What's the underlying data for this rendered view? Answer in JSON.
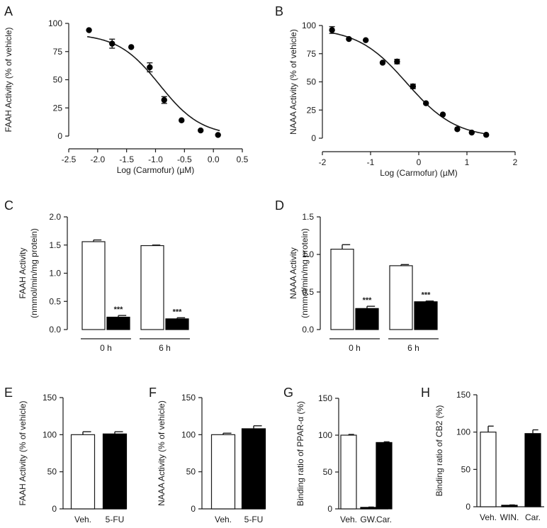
{
  "chart_data": [
    {
      "panel": "A",
      "type": "scatter",
      "xlabel": "Log (Carmofur) (µM)",
      "ylabel": "FAAH Activity (% of vehicle)",
      "xlim": [
        -2.5,
        0.5
      ],
      "ylim": [
        0,
        100
      ],
      "xticks": [
        "-2.5",
        "-2.0",
        "-1.5",
        "-1.0",
        "-0.5",
        "0.0",
        "0.5"
      ],
      "yticks": [
        "0",
        "25",
        "50",
        "75",
        "100"
      ],
      "x": [
        -2.15,
        -1.75,
        -1.42,
        -1.1,
        -0.85,
        -0.55,
        -0.22,
        0.08
      ],
      "y": [
        94,
        82,
        79,
        61,
        32,
        14,
        5,
        1
      ],
      "err": [
        0,
        4,
        0,
        4,
        3,
        0,
        0,
        0
      ],
      "fit": {
        "top": 91,
        "bottom": 0,
        "logIC50": -0.93,
        "hill": 1.2
      }
    },
    {
      "panel": "B",
      "type": "scatter",
      "xlabel": "Log (Carmofur) (µM)",
      "ylabel": "NAAA Activity (% of vehicle)",
      "xlim": [
        -2,
        2
      ],
      "ylim": [
        0,
        100
      ],
      "xticks": [
        "-2",
        "-1",
        "0",
        "1",
        "2"
      ],
      "yticks": [
        "0",
        "25",
        "50",
        "75",
        "100"
      ],
      "x": [
        -1.8,
        -1.45,
        -1.1,
        -0.75,
        -0.45,
        -0.12,
        0.15,
        0.5,
        0.8,
        1.1,
        1.4
      ],
      "y": [
        96,
        88,
        87,
        67,
        68,
        46,
        31,
        21,
        8,
        5,
        3
      ],
      "err": [
        3,
        0,
        0,
        0,
        2,
        2,
        0,
        0,
        0,
        0,
        0
      ],
      "fit": {
        "top": 98,
        "bottom": 0,
        "logIC50": -0.25,
        "hill": 0.85
      }
    },
    {
      "panel": "C",
      "type": "bar",
      "ylabel1": "FAAH Activity",
      "ylabel2": "(nmmol/min/mg protein)",
      "ylim": [
        0,
        2.0
      ],
      "yticks": [
        "0.0",
        "0.5",
        "1.0",
        "1.5",
        "2.0"
      ],
      "values": [
        1.56,
        0.22,
        1.49,
        0.19
      ],
      "err": [
        0.03,
        0.03,
        0.01,
        0.02
      ],
      "fills": [
        "open",
        "filled",
        "open",
        "filled"
      ],
      "marks": [
        "",
        "***",
        "",
        "***"
      ],
      "groups": [
        "0 h",
        "6 h"
      ]
    },
    {
      "panel": "D",
      "type": "bar",
      "ylabel1": "NAAA Activity",
      "ylabel2": "(nmmol/min/mg protein)",
      "ylim": [
        0,
        1.5
      ],
      "yticks": [
        "0.0",
        "0.5",
        "1.0",
        "1.5"
      ],
      "values": [
        1.07,
        0.28,
        0.85,
        0.37
      ],
      "err": [
        0.06,
        0.03,
        0.015,
        0.01
      ],
      "fills": [
        "open",
        "filled",
        "open",
        "filled"
      ],
      "marks": [
        "",
        "***",
        "",
        "***"
      ],
      "groups": [
        "0 h",
        "6 h"
      ]
    },
    {
      "panel": "E",
      "type": "bar",
      "ylabel": "FAAH Activity (% of vehicle)",
      "ylim": [
        0,
        150
      ],
      "yticks": [
        "0",
        "50",
        "100",
        "150"
      ],
      "categories": [
        "Veh.",
        "5-FU"
      ],
      "values": [
        100,
        101
      ],
      "err": [
        4,
        3
      ],
      "fills": [
        "open",
        "filled"
      ]
    },
    {
      "panel": "F",
      "type": "bar",
      "ylabel": "NAAA Activity (% of vehicle)",
      "ylim": [
        0,
        150
      ],
      "yticks": [
        "0",
        "50",
        "100",
        "150"
      ],
      "categories": [
        "Veh.",
        "5-FU"
      ],
      "values": [
        100,
        108
      ],
      "err": [
        2,
        4
      ],
      "fills": [
        "open",
        "filled"
      ]
    },
    {
      "panel": "G",
      "type": "bar",
      "ylabel": "Binding ratio of PPAR-α (%)",
      "ylim": [
        0,
        150
      ],
      "yticks": [
        "0",
        "50",
        "100",
        "150"
      ],
      "categories": [
        "Veh.",
        "GW.",
        "Car."
      ],
      "values": [
        100,
        2,
        90
      ],
      "err": [
        1,
        0.5,
        1
      ],
      "fills": [
        "open",
        "filled",
        "filled"
      ]
    },
    {
      "panel": "H",
      "type": "bar",
      "ylabel": "Binding ratio of CB2 (%)",
      "ylim": [
        0,
        150
      ],
      "yticks": [
        "0",
        "50",
        "100",
        "150"
      ],
      "categories": [
        "Veh.",
        "WIN.",
        "Car."
      ],
      "values": [
        100,
        2,
        98
      ],
      "err": [
        8,
        0.5,
        5
      ],
      "fills": [
        "open",
        "filled",
        "filled"
      ]
    }
  ]
}
